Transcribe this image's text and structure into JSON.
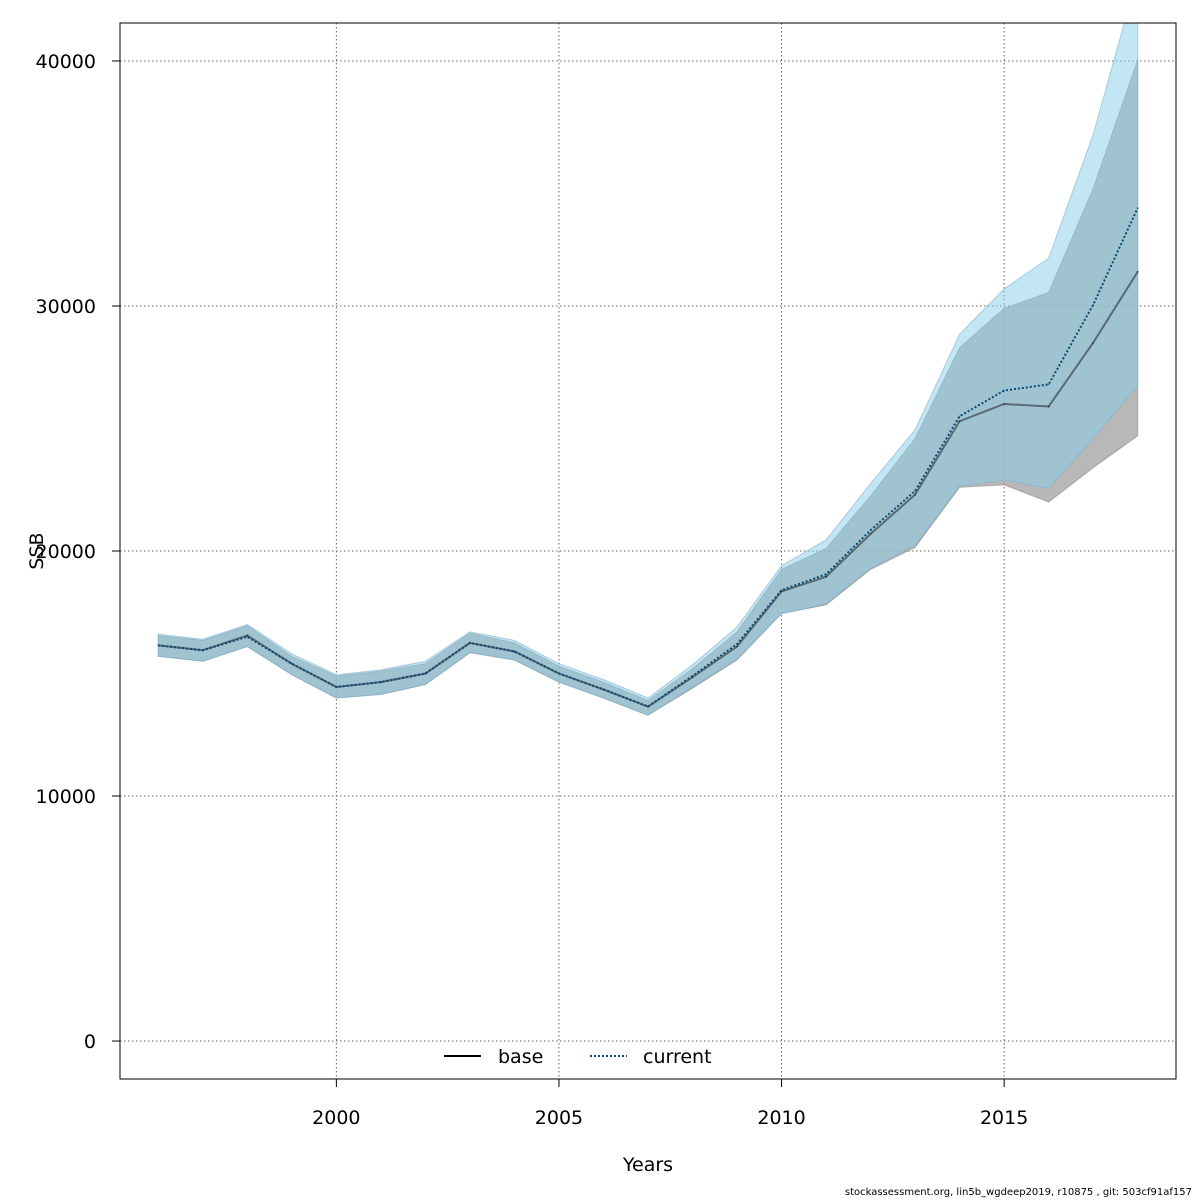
{
  "chart_data": {
    "type": "line",
    "xlabel": "Years",
    "ylabel": "SSB",
    "xlim": [
      1995.14,
      2018.86
    ],
    "ylim": [
      -1550,
      41550
    ],
    "xticks": [
      2000,
      2005,
      2010,
      2015
    ],
    "yticks": [
      0,
      10000,
      20000,
      30000,
      40000
    ],
    "grid": true,
    "legend_position": "bottom-center",
    "x": [
      1996,
      1997,
      1998,
      1999,
      2000,
      2001,
      2002,
      2003,
      2004,
      2005,
      2006,
      2007,
      2008,
      2009,
      2010,
      2011,
      2012,
      2013,
      2014,
      2015,
      2016,
      2017,
      2018
    ],
    "series": [
      {
        "name": "base",
        "line_style": "solid",
        "line_color": "#000000",
        "band_color": "#a0a0a0",
        "values": [
          16150,
          15950,
          16550,
          15400,
          14450,
          14650,
          15000,
          16250,
          15900,
          15000,
          14350,
          13650,
          14850,
          16100,
          18350,
          18950,
          20700,
          22300,
          25300,
          26000,
          25900,
          28500,
          31400
        ],
        "lower": [
          15700,
          15500,
          16100,
          14950,
          14000,
          14150,
          14550,
          15850,
          15550,
          14650,
          14000,
          13300,
          14400,
          15550,
          17450,
          17800,
          19250,
          20150,
          22600,
          22700,
          22000,
          23400,
          24700
        ],
        "upper": [
          16550,
          16350,
          16950,
          15700,
          14900,
          15100,
          15400,
          16650,
          16250,
          15300,
          14650,
          13900,
          15200,
          16700,
          19250,
          20100,
          22250,
          24600,
          28300,
          29900,
          30550,
          34800,
          40050
        ]
      },
      {
        "name": "current",
        "line_style": "dotted",
        "line_color": "#0a4a74",
        "band_color": "#87ceeb",
        "values": [
          16150,
          15950,
          16500,
          15400,
          14450,
          14650,
          15000,
          16250,
          15900,
          15000,
          14350,
          13650,
          14900,
          16200,
          18400,
          19050,
          20850,
          22450,
          25500,
          26550,
          26800,
          30050,
          34000
        ],
        "lower": [
          15700,
          15500,
          16100,
          14950,
          14000,
          14150,
          14550,
          15850,
          15550,
          14650,
          14000,
          13300,
          14450,
          15600,
          17450,
          17850,
          19300,
          20250,
          22650,
          22900,
          22550,
          24600,
          26750
        ],
        "upper": [
          16600,
          16400,
          17000,
          15800,
          14950,
          15150,
          15500,
          16700,
          16350,
          15400,
          14750,
          14000,
          15350,
          16900,
          19400,
          20450,
          22750,
          24950,
          28850,
          30700,
          31950,
          37000,
          43500
        ]
      }
    ]
  },
  "footer": {
    "text": "stockassessment.org, lin5b_wgdeep2019, r10875 , git: 503cf91af157"
  }
}
